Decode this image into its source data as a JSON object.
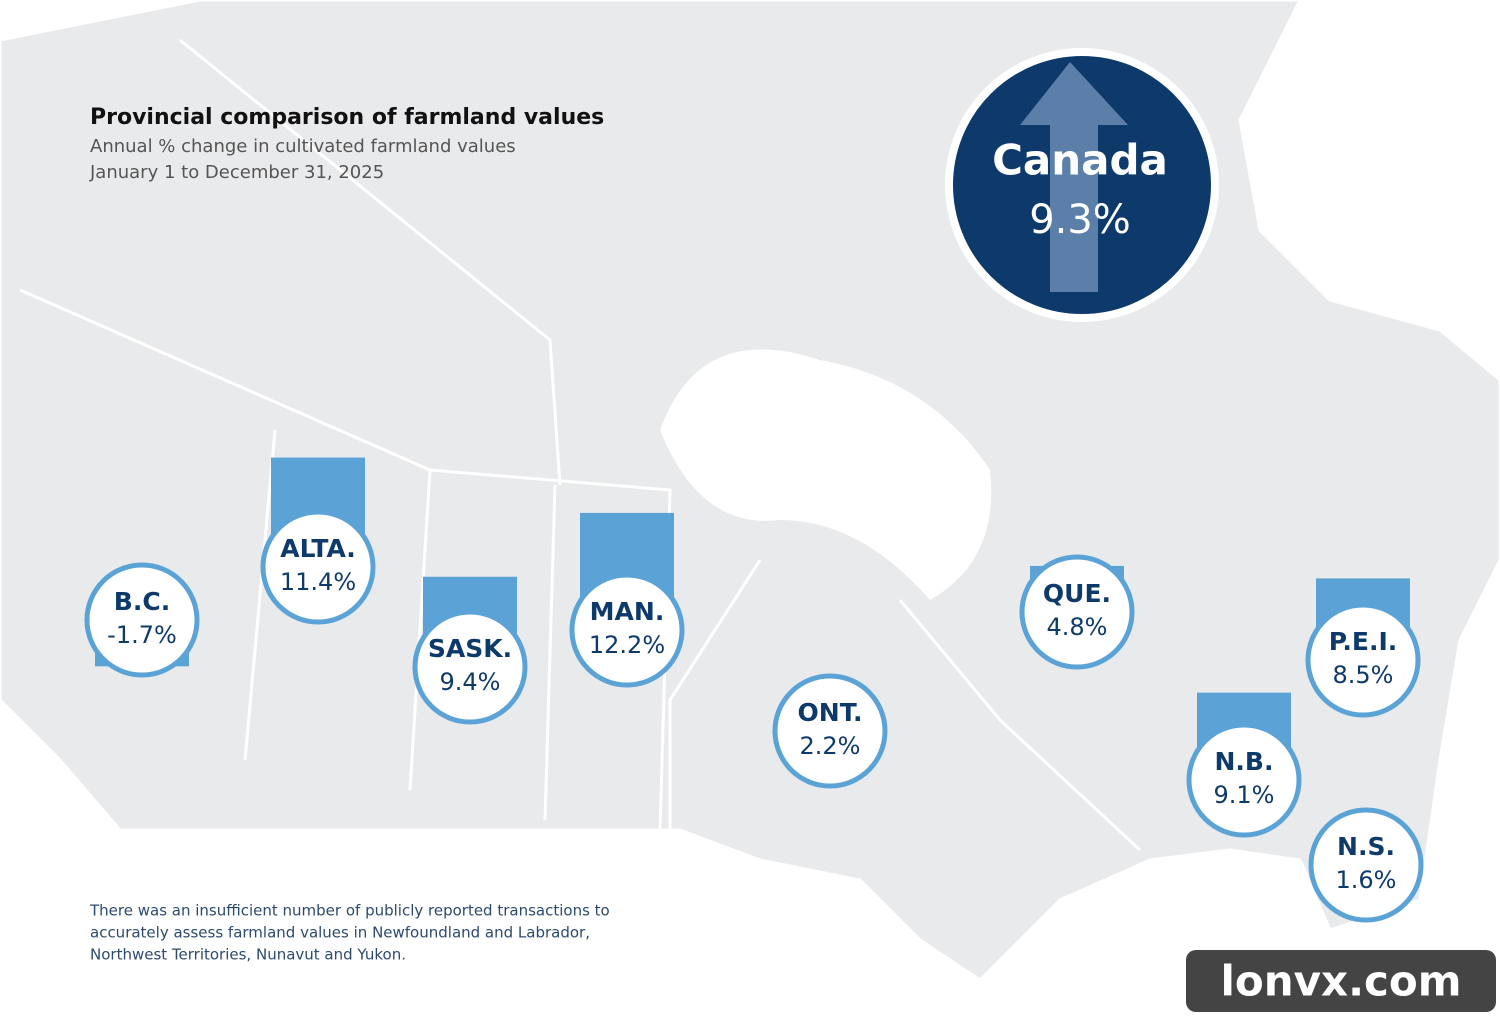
{
  "header": {
    "title": "Provincial comparison of farmland values",
    "subtitle": "Annual % change in cultivated farmland values",
    "period": "January 1 to December 31, 2025"
  },
  "canada": {
    "name": "Canada",
    "value": 9.3,
    "value_label": "9.3%"
  },
  "provinces": [
    {
      "name": "B.C.",
      "value": -1.7,
      "value_label": "-1.7%"
    },
    {
      "name": "ALTA.",
      "value": 11.4,
      "value_label": "11.4%"
    },
    {
      "name": "SASK.",
      "value": 9.4,
      "value_label": "9.4%"
    },
    {
      "name": "MAN.",
      "value": 12.2,
      "value_label": "12.2%"
    },
    {
      "name": "ONT.",
      "value": 2.2,
      "value_label": "2.2%"
    },
    {
      "name": "QUE.",
      "value": 4.8,
      "value_label": "4.8%"
    },
    {
      "name": "N.B.",
      "value": 9.1,
      "value_label": "9.1%"
    },
    {
      "name": "P.E.I.",
      "value": 8.5,
      "value_label": "8.5%"
    },
    {
      "name": "N.S.",
      "value": 1.6,
      "value_label": "1.6%"
    }
  ],
  "note": [
    "There was an insufficient number of publicly reported transactions to",
    "accurately assess farmland values in Newfoundland and Labrador,",
    "Northwest Territories, Nunavut and Yukon."
  ],
  "watermark": "lonvx.com"
}
